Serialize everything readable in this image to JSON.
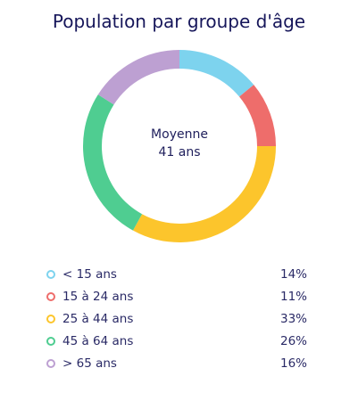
{
  "chart_data": {
    "type": "pie",
    "title": "Population par groupe d'âge",
    "center_label": {
      "line1": "Moyenne",
      "line2": "41 ans"
    },
    "categories": [
      "< 15 ans",
      "15 à 24 ans",
      "25 à 44 ans",
      "45 à 64 ans",
      "> 65 ans"
    ],
    "values": [
      14,
      11,
      33,
      26,
      16
    ],
    "value_labels": [
      "14%",
      "11%",
      "33%",
      "26%",
      "16%"
    ],
    "colors": [
      "#7dd3ee",
      "#ee6d6b",
      "#fcc52c",
      "#4fcd91",
      "#bda0d2"
    ],
    "legend_placement": "bottom"
  }
}
